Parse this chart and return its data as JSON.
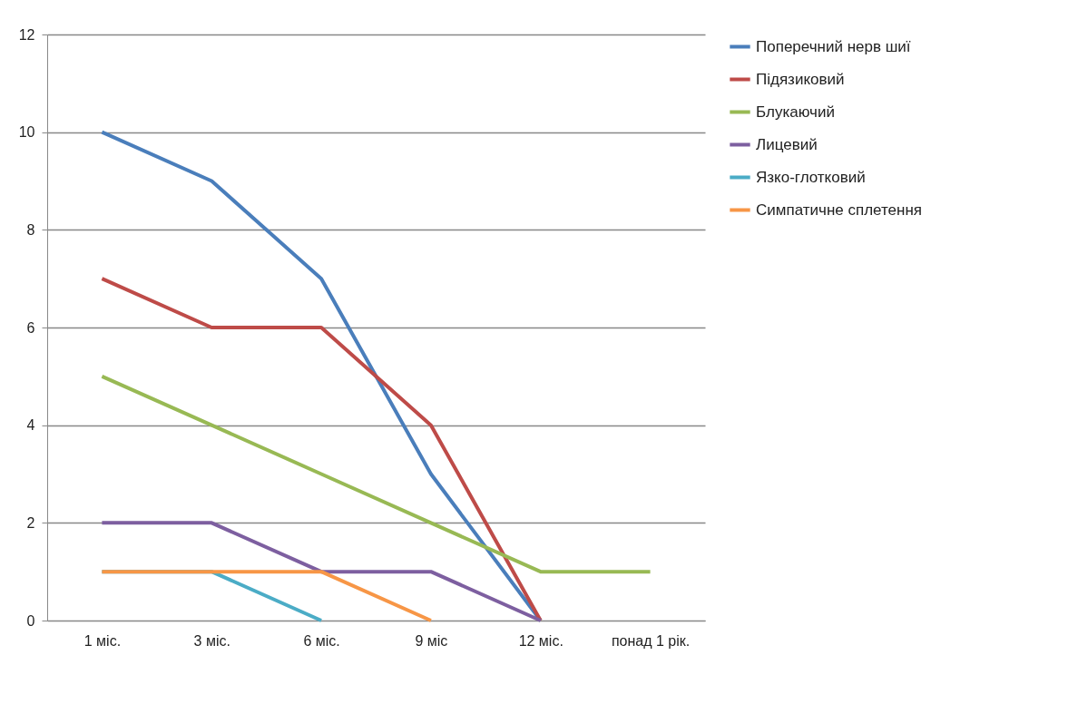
{
  "chart_data": {
    "type": "line",
    "categories": [
      "1 міс.",
      "3 міс.",
      "6 міс.",
      "9 міс",
      "12 міс.",
      "понад 1 рік."
    ],
    "ylim": [
      0,
      12
    ],
    "yticks": [
      0,
      2,
      4,
      6,
      8,
      10,
      12
    ],
    "grid": "y",
    "legend": "right",
    "marker": "none",
    "line_style": "solid",
    "series": [
      {
        "name": "Поперечний нерв шиї",
        "color": "#4a7ebb",
        "values": [
          10,
          9,
          7,
          3,
          0,
          null
        ]
      },
      {
        "name": "Підязиковий",
        "color": "#be4b48",
        "values": [
          7,
          6,
          6,
          4,
          0,
          null
        ]
      },
      {
        "name": "Блукаючий",
        "color": "#98b954",
        "values": [
          5,
          4,
          3,
          2,
          1,
          1
        ]
      },
      {
        "name": "Лицевий",
        "color": "#7d5fa0",
        "values": [
          2,
          2,
          1,
          1,
          0,
          null
        ]
      },
      {
        "name": "Язко-глотковий",
        "color": "#4bacc6",
        "values": [
          1,
          1,
          0,
          null,
          null,
          null
        ]
      },
      {
        "name": "Симпатичне сплетення",
        "color": "#f79646",
        "values": [
          1,
          1,
          1,
          0,
          null,
          null
        ]
      }
    ]
  }
}
